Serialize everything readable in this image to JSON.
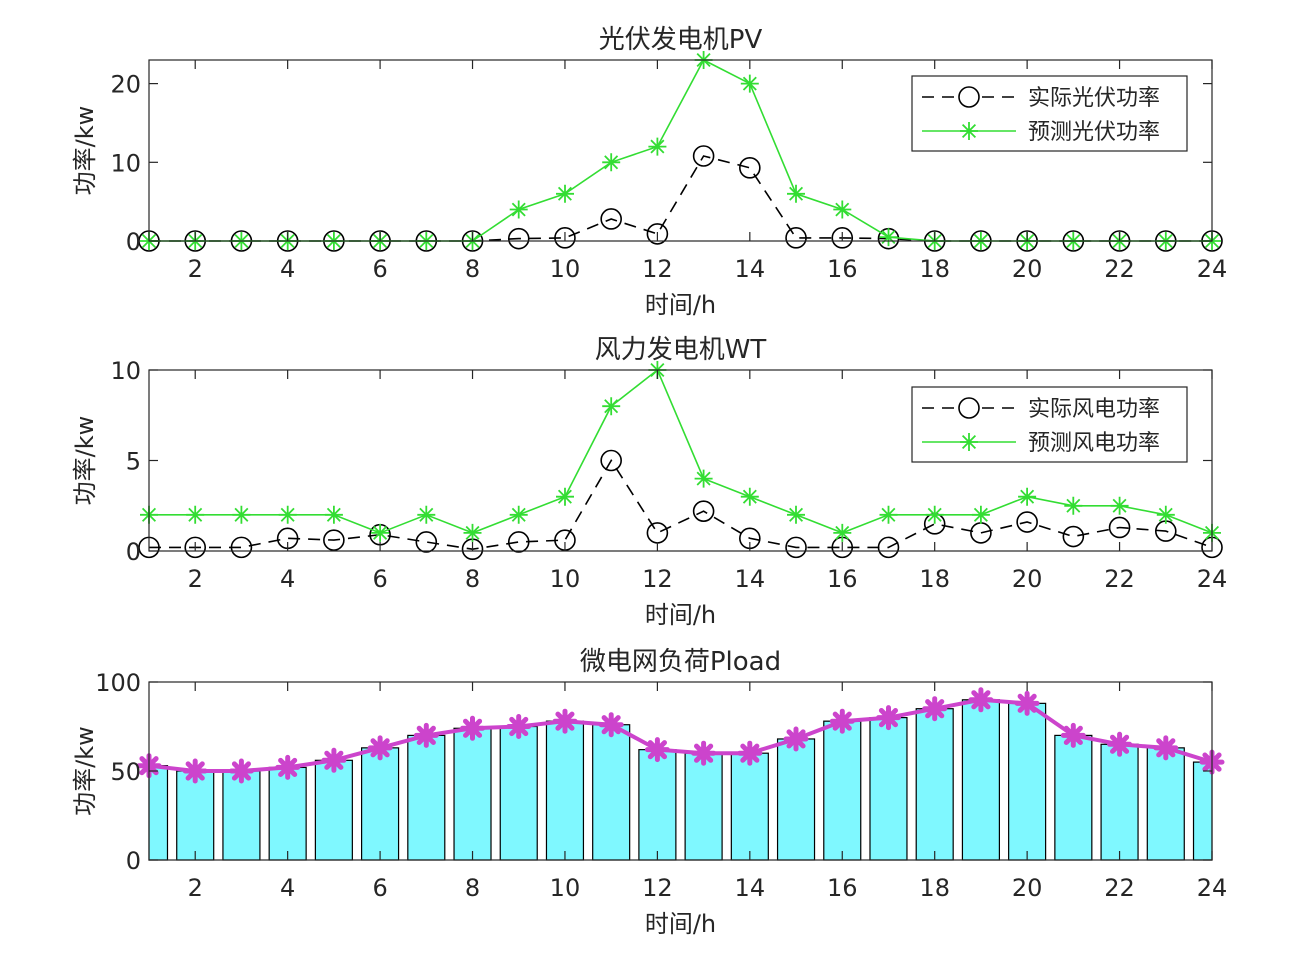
{
  "chart_data": [
    {
      "type": "line",
      "title": "光伏发电机PV",
      "xlabel": "时间/h",
      "ylabel": "功率/kw",
      "xlim": [
        1,
        24
      ],
      "ylim": [
        0,
        23
      ],
      "xticks": [
        2,
        4,
        6,
        8,
        10,
        12,
        14,
        16,
        18,
        20,
        22,
        24
      ],
      "yticks": [
        0,
        10,
        20
      ],
      "legend_position": "top-right",
      "x": [
        1,
        2,
        3,
        4,
        5,
        6,
        7,
        8,
        9,
        10,
        11,
        12,
        13,
        14,
        15,
        16,
        17,
        18,
        19,
        20,
        21,
        22,
        23,
        24
      ],
      "series": [
        {
          "name": "实际光伏功率",
          "style": "dashed",
          "marker": "circle",
          "color": "#000000",
          "values": [
            0,
            0,
            0,
            0,
            0,
            0,
            0,
            0,
            0.3,
            0.4,
            2.8,
            0.9,
            10.8,
            9.3,
            0.4,
            0.4,
            0.3,
            0,
            0,
            0,
            0,
            0,
            0,
            0
          ]
        },
        {
          "name": "预测光伏功率",
          "style": "solid",
          "marker": "star",
          "color": "#33dd33",
          "values": [
            0,
            0,
            0,
            0,
            0,
            0,
            0,
            0,
            4,
            6,
            10,
            12,
            23,
            20,
            6,
            4,
            0.5,
            0,
            0,
            0,
            0,
            0,
            0,
            0
          ]
        }
      ]
    },
    {
      "type": "line",
      "title": "风力发电机WT",
      "xlabel": "时间/h",
      "ylabel": "功率/kw",
      "xlim": [
        1,
        24
      ],
      "ylim": [
        0,
        10
      ],
      "xticks": [
        2,
        4,
        6,
        8,
        10,
        12,
        14,
        16,
        18,
        20,
        22,
        24
      ],
      "yticks": [
        0,
        5,
        10
      ],
      "legend_position": "top-right",
      "x": [
        1,
        2,
        3,
        4,
        5,
        6,
        7,
        8,
        9,
        10,
        11,
        12,
        13,
        14,
        15,
        16,
        17,
        18,
        19,
        20,
        21,
        22,
        23,
        24
      ],
      "series": [
        {
          "name": "实际风电功率",
          "style": "dashed",
          "marker": "circle",
          "color": "#000000",
          "values": [
            0.2,
            0.2,
            0.2,
            0.7,
            0.6,
            0.9,
            0.5,
            0.1,
            0.5,
            0.6,
            5,
            1,
            2.2,
            0.7,
            0.2,
            0.2,
            0.2,
            1.5,
            1,
            1.6,
            0.8,
            1.3,
            1.1,
            0.2
          ]
        },
        {
          "name": "预测风电功率",
          "style": "solid",
          "marker": "star",
          "color": "#33dd33",
          "values": [
            2,
            2,
            2,
            2,
            2,
            1,
            2,
            1,
            2,
            3,
            8,
            10,
            4,
            3,
            2,
            1,
            2,
            2,
            2,
            3,
            2.5,
            2.5,
            2,
            1
          ]
        }
      ]
    },
    {
      "type": "bar",
      "title": "微电网负荷Pload",
      "xlabel": "时间/h",
      "ylabel": "功率/kw",
      "xlim": [
        1,
        24
      ],
      "ylim": [
        0,
        100
      ],
      "xticks": [
        2,
        4,
        6,
        8,
        10,
        12,
        14,
        16,
        18,
        20,
        22,
        24
      ],
      "yticks": [
        0,
        50,
        100
      ],
      "categories": [
        1,
        2,
        3,
        4,
        5,
        6,
        7,
        8,
        9,
        10,
        11,
        12,
        13,
        14,
        15,
        16,
        17,
        18,
        19,
        20,
        21,
        22,
        23,
        24
      ],
      "bar_color": "#7ff8ff",
      "line_color": "#cc44cc",
      "values": [
        53,
        50,
        50,
        52,
        56,
        63,
        70,
        74,
        75,
        78,
        76,
        62,
        60,
        60,
        68,
        78,
        80,
        85,
        90,
        88,
        70,
        65,
        63,
        55
      ]
    }
  ]
}
